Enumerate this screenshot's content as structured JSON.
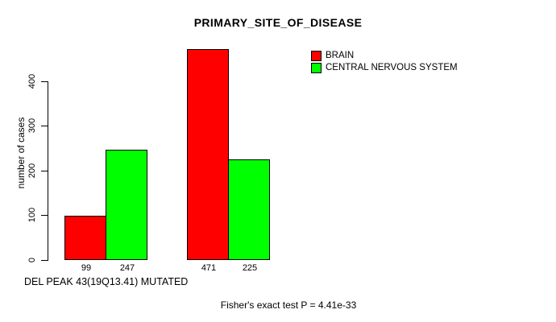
{
  "chart_data": {
    "type": "bar",
    "title": "PRIMARY_SITE_OF_DISEASE",
    "ylabel": "number of cases",
    "xlabel": "DEL PEAK 43(19Q13.41) MUTATED",
    "annotation": "Fisher's exact test P = 4.41e-33",
    "series": [
      {
        "name": "BRAIN",
        "color": "#ff0000",
        "values": [
          99,
          471
        ]
      },
      {
        "name": "CENTRAL NERVOUS SYSTEM",
        "color": "#00ff00",
        "values": [
          247,
          225
        ]
      }
    ],
    "bar_count_labels": [
      "99",
      "247",
      "471",
      "225"
    ],
    "yticks": [
      0,
      100,
      200,
      300,
      400
    ],
    "ylim": [
      0,
      480
    ],
    "grid": false,
    "legend_position": "top-right",
    "background_color": "#ffffff",
    "axis_color": "#000000",
    "text_color": "#000000"
  }
}
